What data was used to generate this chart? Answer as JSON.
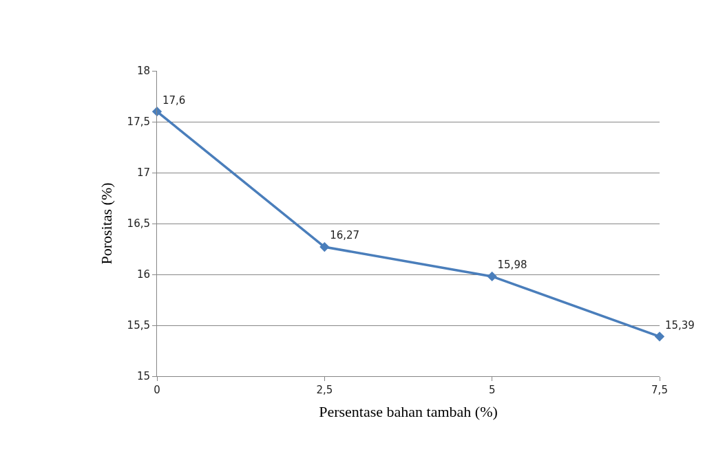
{
  "chart_data": {
    "type": "line",
    "xlabel": "Persentase bahan tambah (%)",
    "ylabel": "Porositas (%)",
    "categories": [
      "0",
      "2,5",
      "5",
      "7,5"
    ],
    "series": [
      {
        "color": "#4a7ebb",
        "values": [
          17.6,
          16.27,
          15.98,
          15.39
        ],
        "value_labels": [
          "17,6",
          "16,27",
          "15,98",
          "15,39"
        ]
      }
    ],
    "ylim": [
      15,
      18
    ],
    "yticks": [
      15,
      {
        "value": 15.5,
        "label": "15,5"
      },
      16,
      {
        "value": 16.5,
        "label": "16,5"
      },
      17,
      {
        "value": 17.5,
        "label": "17,5"
      },
      18
    ],
    "grid": "y",
    "legend": false,
    "marker": "diamond",
    "line_style": "solid"
  }
}
